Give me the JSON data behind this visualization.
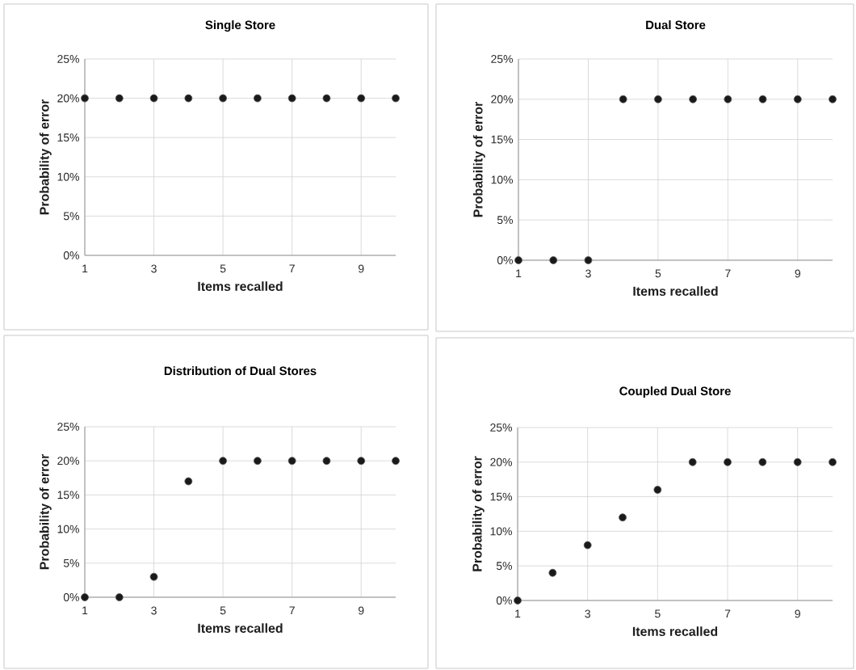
{
  "chart_data": [
    {
      "type": "scatter",
      "title": "Single Store",
      "xlabel": "Items recalled",
      "ylabel": "Probability of error",
      "x": [
        1,
        2,
        3,
        4,
        5,
        6,
        7,
        8,
        9,
        10
      ],
      "values": [
        20,
        20,
        20,
        20,
        20,
        20,
        20,
        20,
        20,
        20
      ],
      "color": "#1a1a1a",
      "marker": "circle",
      "grid": true,
      "xlim": [
        1,
        10
      ],
      "xticks": [
        1,
        3,
        5,
        7,
        9
      ],
      "ylim": [
        0,
        25
      ],
      "yticks": [
        {
          "value": 0,
          "label": "0%"
        },
        {
          "value": 5,
          "label": "5%"
        },
        {
          "value": 10,
          "label": "10%"
        },
        {
          "value": 15,
          "label": "15%"
        },
        {
          "value": 20,
          "label": "20%"
        },
        {
          "value": 25,
          "label": "25%"
        }
      ]
    },
    {
      "type": "scatter",
      "title": "Dual Store",
      "xlabel": "Items recalled",
      "ylabel": "Probability of error",
      "x": [
        1,
        2,
        3,
        4,
        5,
        6,
        7,
        8,
        9,
        10
      ],
      "values": [
        0,
        0,
        0,
        20,
        20,
        20,
        20,
        20,
        20,
        20
      ],
      "color": "#1a1a1a",
      "marker": "circle",
      "grid": true,
      "xlim": [
        1,
        10
      ],
      "xticks": [
        1,
        3,
        5,
        7,
        9
      ],
      "ylim": [
        0,
        25
      ],
      "yticks": [
        {
          "value": 0,
          "label": "0%"
        },
        {
          "value": 5,
          "label": "5%"
        },
        {
          "value": 10,
          "label": "10%"
        },
        {
          "value": 15,
          "label": "15%"
        },
        {
          "value": 20,
          "label": "20%"
        },
        {
          "value": 25,
          "label": "25%"
        }
      ]
    },
    {
      "type": "scatter",
      "title": "Distribution of Dual Stores",
      "xlabel": "Items recalled",
      "ylabel": "Probability of error",
      "x": [
        1,
        2,
        3,
        4,
        5,
        6,
        7,
        8,
        9,
        10
      ],
      "values": [
        0,
        0,
        3,
        17,
        20,
        20,
        20,
        20,
        20,
        20
      ],
      "color": "#1a1a1a",
      "marker": "circle",
      "grid": true,
      "xlim": [
        1,
        10
      ],
      "xticks": [
        1,
        3,
        5,
        7,
        9
      ],
      "ylim": [
        0,
        25
      ],
      "yticks": [
        {
          "value": 0,
          "label": "0%"
        },
        {
          "value": 5,
          "label": "5%"
        },
        {
          "value": 10,
          "label": "10%"
        },
        {
          "value": 15,
          "label": "15%"
        },
        {
          "value": 20,
          "label": "20%"
        },
        {
          "value": 25,
          "label": "25%"
        }
      ]
    },
    {
      "type": "scatter",
      "title": "Coupled Dual Store",
      "xlabel": "Items recalled",
      "ylabel": "Probability of error",
      "x": [
        1,
        2,
        3,
        4,
        5,
        6,
        7,
        8,
        9,
        10
      ],
      "values": [
        0,
        4,
        8,
        12,
        16,
        20,
        20,
        20,
        20,
        20
      ],
      "color": "#1a1a1a",
      "marker": "circle",
      "grid": true,
      "xlim": [
        1,
        10
      ],
      "xticks": [
        1,
        3,
        5,
        7,
        9
      ],
      "ylim": [
        0,
        25
      ],
      "yticks": [
        {
          "value": 0,
          "label": "0%"
        },
        {
          "value": 5,
          "label": "5%"
        },
        {
          "value": 10,
          "label": "10%"
        },
        {
          "value": 15,
          "label": "15%"
        },
        {
          "value": 20,
          "label": "20%"
        },
        {
          "value": 25,
          "label": "25%"
        }
      ]
    }
  ]
}
